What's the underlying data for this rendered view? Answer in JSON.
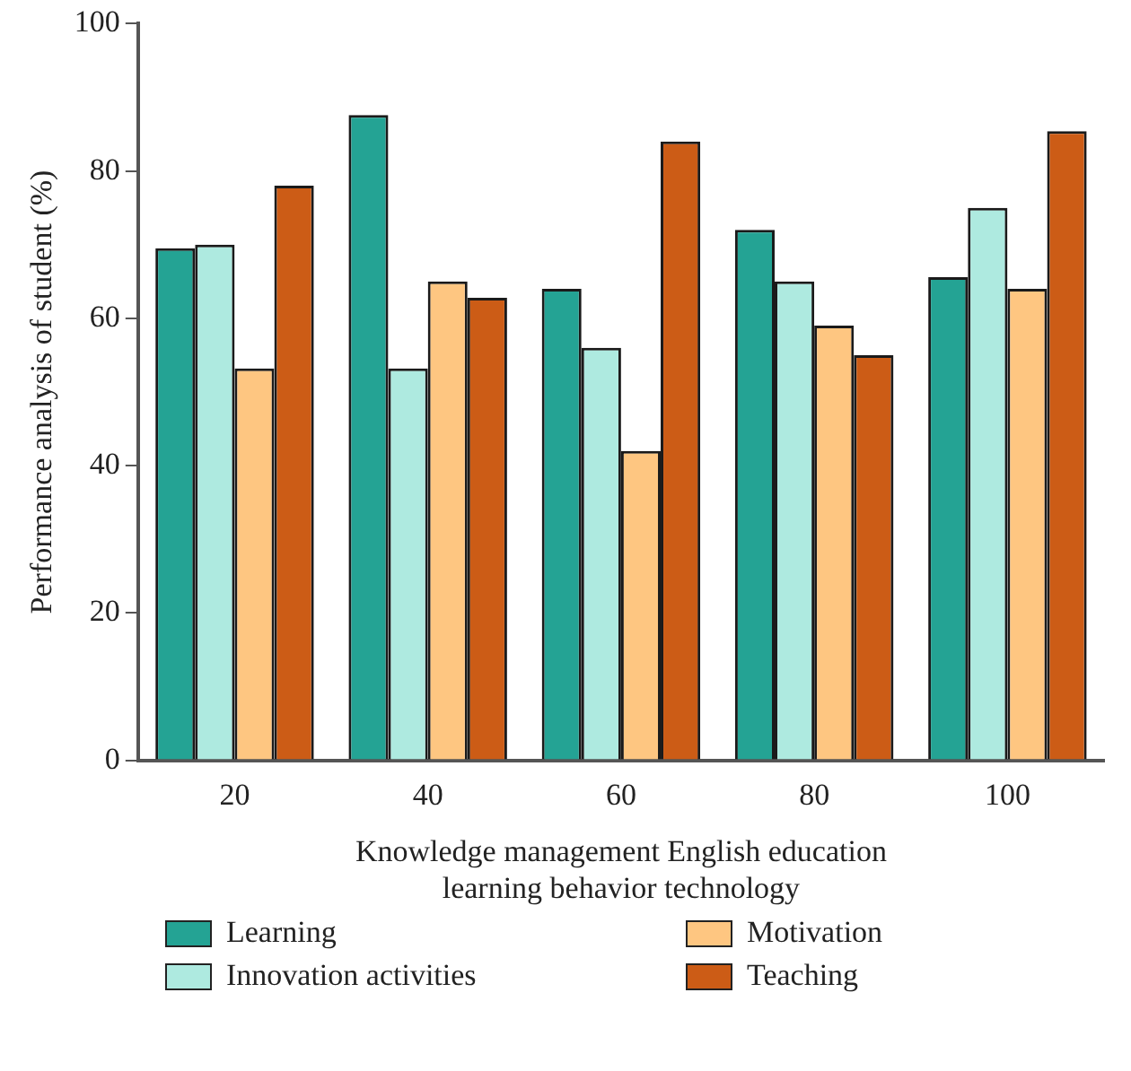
{
  "chart_data": {
    "type": "bar",
    "xlabel": "Knowledge management English education learning behavior technology",
    "ylabel": "Performance analysis of student (%)",
    "categories": [
      "20",
      "40",
      "60",
      "80",
      "100"
    ],
    "series": [
      {
        "name": "Learning",
        "color": "#24a394",
        "values": [
          69.5,
          87.6,
          64,
          72,
          65.6
        ]
      },
      {
        "name": "Innovation activities",
        "color": "#aeeae0",
        "values": [
          70,
          53.2,
          56,
          65,
          75
        ]
      },
      {
        "name": "Motivation",
        "color": "#fec681",
        "values": [
          53.2,
          65,
          42,
          59,
          64
        ]
      },
      {
        "name": "Teaching",
        "color": "#cc5c16",
        "values": [
          78,
          62.8,
          84,
          55,
          85.4
        ]
      }
    ],
    "ylim": [
      0,
      100
    ],
    "yticks": [
      0,
      20,
      40,
      60,
      80,
      100
    ],
    "grid": false,
    "legend": "bottom"
  }
}
